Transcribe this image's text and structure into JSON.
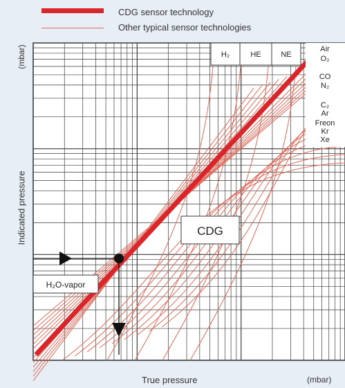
{
  "legend": {
    "thick_label": "CDG sensor technology",
    "thin_label": "Other typical sensor technologies"
  },
  "colors": {
    "background": "#e8eef6",
    "cdg_line": "#d9262b",
    "other_lines": "#e36a5a",
    "grid": "#3a3a3a",
    "box_fill": "#ffffff"
  },
  "chart_data": {
    "type": "line",
    "title": "",
    "xlabel": "True pressure",
    "xunit": "(mbar)",
    "ylabel": "Indicated pressure",
    "yunit": "(mbar)",
    "xscale": "log",
    "yscale": "log",
    "tick_labels_shown": false,
    "grid": true,
    "legend_position": "top-left",
    "series": [
      {
        "name": "CDG sensor technology",
        "style": "thick",
        "relation": "indicated = true"
      },
      {
        "name": "Other typical sensor technologies",
        "style": "thin",
        "relation": "indicated differs from true; curve depends on gas"
      }
    ],
    "gas_columns": [
      "H₂",
      "HE",
      "NE"
    ],
    "gas_list": [
      "Air",
      "O₂",
      "CO",
      "N₂",
      "C₂",
      "Ar",
      "Freon",
      "Kr",
      "Xe"
    ],
    "annotations": {
      "cdg_box": "CDG",
      "vapor_box": "H₂O-vapor"
    }
  }
}
